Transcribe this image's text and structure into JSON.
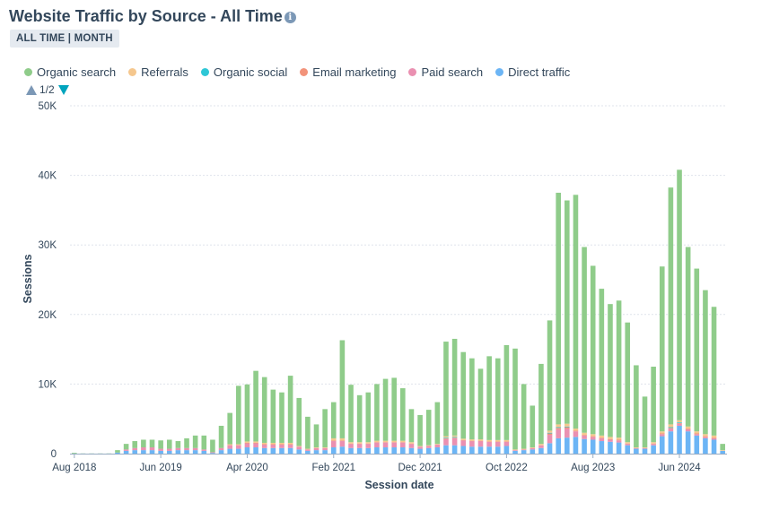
{
  "header": {
    "title": "Website Traffic by Source - All Time",
    "info_icon": "info-icon"
  },
  "badge": {
    "label": "ALL TIME | MONTH"
  },
  "pager": {
    "label": "1/2"
  },
  "colors": {
    "organic_search": "#8fcc8a",
    "referrals": "#f5c78e",
    "organic_social": "#2ec7d6",
    "email_marketing": "#f2937a",
    "paid_search": "#ea90b1",
    "direct_traffic": "#6cb5f5"
  },
  "chart_data": {
    "type": "bar",
    "stacked": true,
    "title": "Website Traffic by Source - All Time",
    "xlabel": "Session date",
    "ylabel": "Sessions",
    "ylim": [
      0,
      50000
    ],
    "yticks": [
      0,
      10000,
      20000,
      30000,
      40000,
      50000
    ],
    "ytick_labels": [
      "0",
      "10K",
      "20K",
      "30K",
      "40K",
      "50K"
    ],
    "grid": true,
    "legend_position": "top-left",
    "x_tick_labels": [
      {
        "index": 0,
        "label": "Aug 2018"
      },
      {
        "index": 10,
        "label": "Jun 2019"
      },
      {
        "index": 20,
        "label": "Apr 2020"
      },
      {
        "index": 30,
        "label": "Feb 2021"
      },
      {
        "index": 40,
        "label": "Dec 2021"
      },
      {
        "index": 50,
        "label": "Oct 2022"
      },
      {
        "index": 60,
        "label": "Aug 2023"
      },
      {
        "index": 70,
        "label": "Jun 2024"
      }
    ],
    "categories": [
      "2018-08",
      "2018-09",
      "2018-10",
      "2018-11",
      "2018-12",
      "2019-01",
      "2019-02",
      "2019-03",
      "2019-04",
      "2019-05",
      "2019-06",
      "2019-07",
      "2019-08",
      "2019-09",
      "2019-10",
      "2019-11",
      "2019-12",
      "2020-01",
      "2020-02",
      "2020-03",
      "2020-04",
      "2020-05",
      "2020-06",
      "2020-07",
      "2020-08",
      "2020-09",
      "2020-10",
      "2020-11",
      "2020-12",
      "2021-01",
      "2021-02",
      "2021-03",
      "2021-04",
      "2021-05",
      "2021-06",
      "2021-07",
      "2021-08",
      "2021-09",
      "2021-10",
      "2021-11",
      "2021-12",
      "2022-01",
      "2022-02",
      "2022-03",
      "2022-04",
      "2022-05",
      "2022-06",
      "2022-07",
      "2022-08",
      "2022-09",
      "2022-10",
      "2022-11",
      "2022-12",
      "2023-01",
      "2023-02",
      "2023-03",
      "2023-04",
      "2023-05",
      "2023-06",
      "2023-07",
      "2023-08",
      "2023-09",
      "2023-10",
      "2023-11",
      "2023-12",
      "2024-01",
      "2024-02",
      "2024-03",
      "2024-04",
      "2024-05",
      "2024-06",
      "2024-07",
      "2024-08",
      "2024-09",
      "2024-10",
      "2024-11"
    ],
    "series": [
      {
        "name": "Direct traffic",
        "color": "#6cb5f5",
        "values": [
          20,
          10,
          10,
          10,
          10,
          150,
          400,
          500,
          500,
          500,
          400,
          400,
          500,
          500,
          500,
          400,
          100,
          500,
          700,
          700,
          900,
          900,
          800,
          800,
          800,
          800,
          600,
          400,
          500,
          500,
          900,
          1000,
          800,
          800,
          800,
          900,
          900,
          900,
          900,
          800,
          700,
          800,
          900,
          1200,
          1200,
          1100,
          1000,
          1000,
          1000,
          1000,
          1100,
          400,
          500,
          600,
          800,
          1500,
          2200,
          2300,
          2400,
          2100,
          2000,
          1800,
          1700,
          1600,
          1200,
          700,
          700,
          1200,
          2500,
          3200,
          4000,
          3200,
          2600,
          2200,
          2000,
          400
        ]
      },
      {
        "name": "Paid search",
        "color": "#ea90b1",
        "values": [
          0,
          0,
          0,
          0,
          0,
          0,
          200,
          300,
          400,
          400,
          300,
          300,
          300,
          300,
          300,
          200,
          100,
          300,
          500,
          500,
          600,
          600,
          500,
          500,
          500,
          500,
          400,
          200,
          300,
          300,
          900,
          800,
          600,
          600,
          600,
          700,
          700,
          700,
          700,
          600,
          300,
          300,
          400,
          900,
          1000,
          800,
          800,
          800,
          700,
          700,
          600,
          100,
          100,
          200,
          400,
          1200,
          1300,
          1300,
          800,
          500,
          400,
          400,
          300,
          300,
          200,
          100,
          100,
          200,
          300,
          400,
          300,
          300,
          200,
          200,
          200,
          0
        ]
      },
      {
        "name": "Email marketing",
        "color": "#f2937a",
        "values": [
          0,
          0,
          0,
          0,
          0,
          0,
          0,
          0,
          0,
          0,
          0,
          0,
          0,
          0,
          0,
          0,
          0,
          0,
          50,
          50,
          50,
          50,
          50,
          50,
          50,
          50,
          0,
          0,
          0,
          0,
          100,
          100,
          50,
          50,
          50,
          50,
          50,
          50,
          50,
          50,
          0,
          0,
          0,
          100,
          100,
          50,
          50,
          50,
          50,
          50,
          50,
          0,
          0,
          0,
          0,
          200,
          200,
          200,
          100,
          100,
          100,
          100,
          100,
          100,
          50,
          0,
          0,
          50,
          100,
          100,
          100,
          100,
          100,
          100,
          100,
          0
        ]
      },
      {
        "name": "Organic social",
        "color": "#2ec7d6",
        "values": [
          0,
          0,
          0,
          0,
          0,
          0,
          0,
          0,
          0,
          0,
          0,
          0,
          0,
          0,
          0,
          0,
          0,
          0,
          0,
          0,
          0,
          0,
          0,
          0,
          0,
          0,
          0,
          0,
          0,
          0,
          0,
          0,
          0,
          0,
          0,
          0,
          0,
          0,
          0,
          0,
          0,
          0,
          0,
          100,
          100,
          0,
          0,
          0,
          0,
          0,
          0,
          0,
          0,
          0,
          0,
          100,
          100,
          100,
          0,
          0,
          0,
          0,
          0,
          0,
          0,
          0,
          0,
          0,
          0,
          100,
          100,
          0,
          0,
          0,
          0,
          0
        ]
      },
      {
        "name": "Referrals",
        "color": "#f5c78e",
        "values": [
          0,
          0,
          0,
          0,
          0,
          0,
          0,
          0,
          0,
          0,
          0,
          0,
          0,
          0,
          0,
          0,
          0,
          0,
          100,
          100,
          200,
          200,
          200,
          200,
          200,
          200,
          100,
          100,
          100,
          100,
          300,
          300,
          200,
          200,
          200,
          200,
          200,
          200,
          200,
          200,
          100,
          100,
          100,
          200,
          200,
          200,
          200,
          200,
          200,
          200,
          200,
          100,
          100,
          100,
          200,
          300,
          400,
          400,
          300,
          300,
          300,
          300,
          300,
          300,
          200,
          100,
          100,
          200,
          300,
          400,
          300,
          300,
          300,
          300,
          300,
          100
        ]
      },
      {
        "name": "Organic search",
        "color": "#8fcc8a",
        "values": [
          100,
          10,
          10,
          10,
          10,
          350,
          800,
          1000,
          1100,
          1100,
          1200,
          1300,
          1000,
          1400,
          1800,
          2000,
          1800,
          3200,
          4500,
          8400,
          8200,
          10150,
          9450,
          7650,
          7250,
          9650,
          6900,
          4600,
          3300,
          5500,
          5200,
          14100,
          8250,
          6750,
          7150,
          8150,
          8900,
          9050,
          7550,
          4750,
          4450,
          5100,
          6000,
          13600,
          13900,
          12450,
          11650,
          10150,
          12050,
          11750,
          13650,
          14500,
          9300,
          6000,
          11500,
          15850,
          33300,
          32100,
          33600,
          26700,
          24200,
          21100,
          19100,
          19700,
          17200,
          11800,
          7300,
          10850,
          23700,
          34050,
          36000,
          25800,
          23400,
          20700,
          18500,
          900
        ]
      }
    ]
  }
}
